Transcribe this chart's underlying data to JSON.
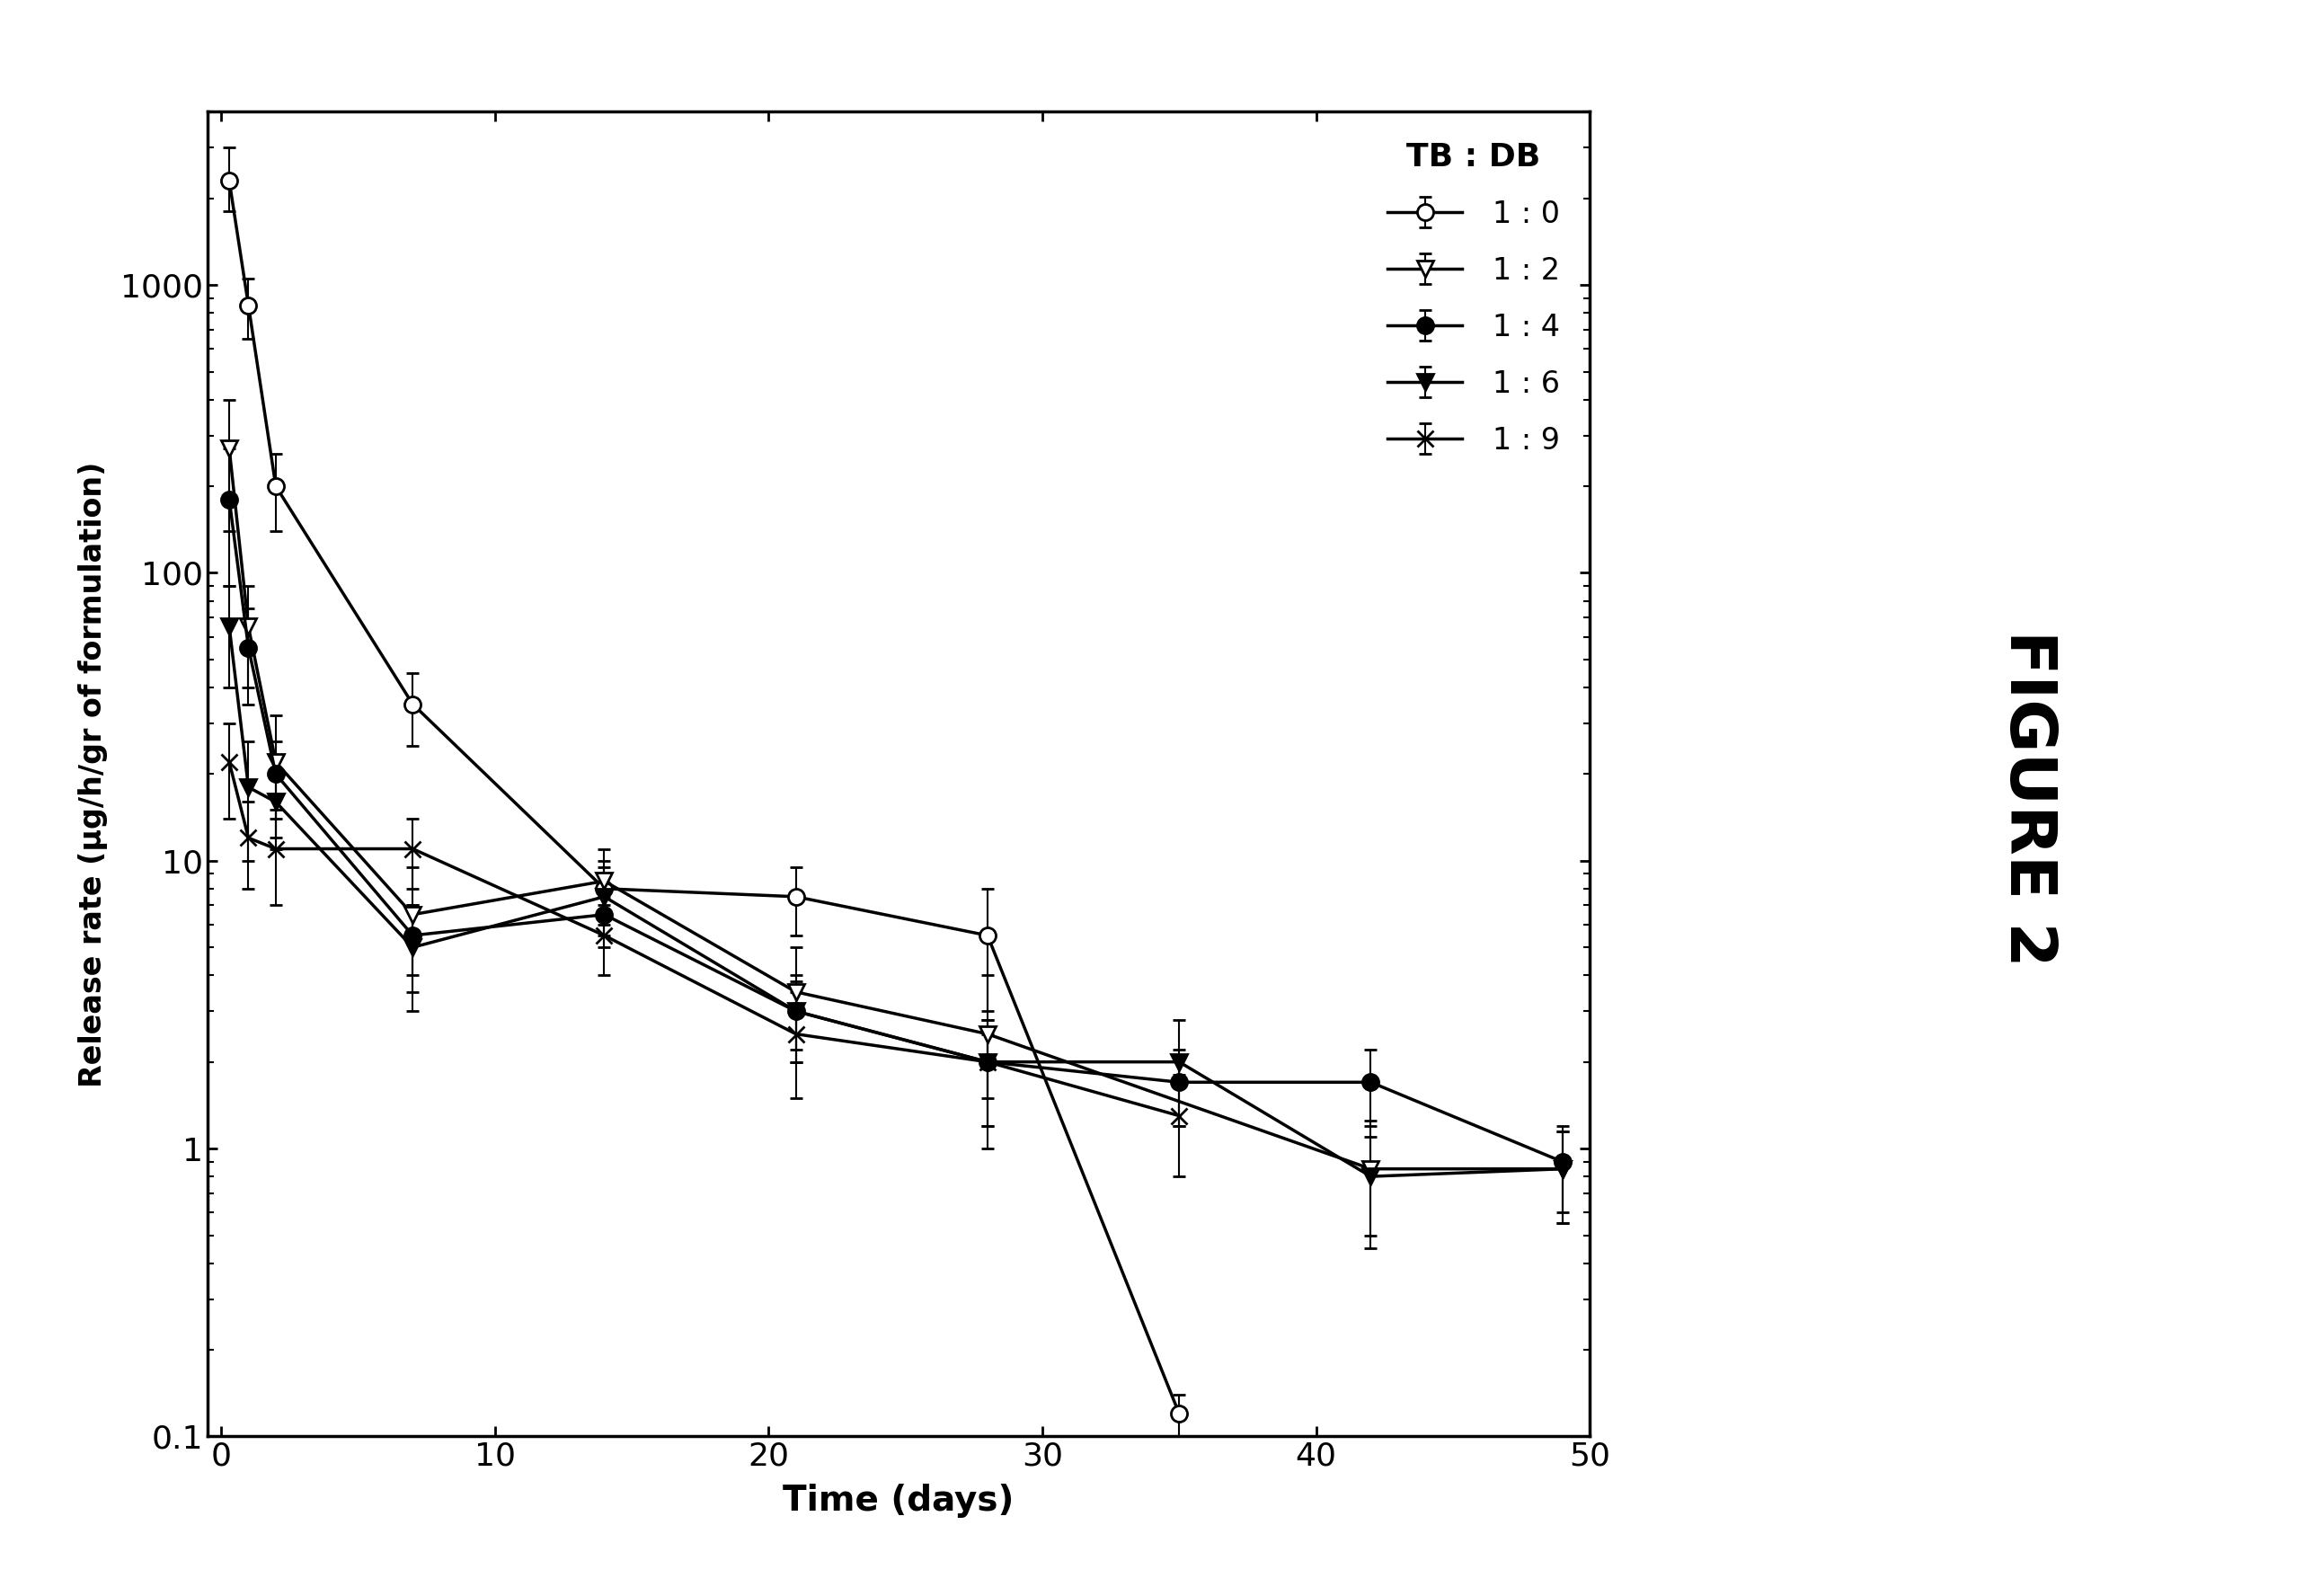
{
  "xlabel": "Time (days)",
  "ylabel": "Release rate (μg/h/gr of formulation)",
  "figure2_label": "FIGURE 2",
  "xlim": [
    -0.5,
    50
  ],
  "ylim": [
    0.1,
    4000
  ],
  "xticks": [
    0,
    10,
    20,
    30,
    40,
    50
  ],
  "legend_title": "TB : DB",
  "background_color": "#ffffff",
  "series": [
    {
      "label": "1 : 0",
      "marker": "o",
      "filled": false,
      "linewidth": 2.5,
      "markersize": 13,
      "x": [
        0.3,
        1.0,
        2.0,
        7.0,
        14.0,
        21.0,
        28.0,
        35.0
      ],
      "y": [
        2300,
        850,
        200,
        35,
        8.0,
        7.5,
        5.5,
        0.12
      ],
      "yerr_low": [
        500,
        200,
        60,
        10,
        1.5,
        2.0,
        2.5,
        0.02
      ],
      "yerr_high": [
        700,
        200,
        60,
        10,
        1.5,
        2.0,
        2.5,
        0.02
      ]
    },
    {
      "label": "1 : 2",
      "marker": "v",
      "filled": false,
      "linewidth": 2.5,
      "markersize": 13,
      "x": [
        0.3,
        1.0,
        2.0,
        7.0,
        14.0,
        21.0,
        28.0,
        42.0,
        49.0
      ],
      "y": [
        270,
        65,
        22,
        6.5,
        8.5,
        3.5,
        2.5,
        0.85,
        0.85
      ],
      "yerr_low": [
        130,
        25,
        10,
        3.0,
        2.5,
        1.5,
        1.5,
        0.4,
        0.3
      ],
      "yerr_high": [
        130,
        25,
        10,
        3.0,
        2.5,
        1.5,
        1.5,
        0.4,
        0.3
      ]
    },
    {
      "label": "1 : 4",
      "marker": "o",
      "filled": true,
      "linewidth": 2.5,
      "markersize": 13,
      "x": [
        0.3,
        1.0,
        2.0,
        7.0,
        14.0,
        21.0,
        28.0,
        35.0,
        42.0,
        49.0
      ],
      "y": [
        180,
        55,
        20,
        5.5,
        6.5,
        3.0,
        2.0,
        1.7,
        1.7,
        0.9
      ],
      "yerr_low": [
        90,
        20,
        6,
        1.5,
        1.0,
        0.8,
        0.5,
        0.5,
        0.5,
        0.3
      ],
      "yerr_high": [
        90,
        20,
        6,
        1.5,
        1.0,
        0.8,
        0.5,
        0.5,
        0.5,
        0.3
      ]
    },
    {
      "label": "1 : 6",
      "marker": "v",
      "filled": true,
      "linewidth": 2.5,
      "markersize": 13,
      "x": [
        0.3,
        1.0,
        2.0,
        7.0,
        14.0,
        21.0,
        28.0,
        35.0,
        42.0,
        49.0
      ],
      "y": [
        65,
        18,
        16,
        5.0,
        7.5,
        3.0,
        2.0,
        2.0,
        0.8,
        0.85
      ],
      "yerr_low": [
        25,
        8,
        5,
        2.0,
        2.5,
        1.0,
        0.8,
        0.8,
        0.3,
        0.3
      ],
      "yerr_high": [
        25,
        8,
        5,
        2.0,
        2.5,
        1.0,
        0.8,
        0.8,
        0.3,
        0.3
      ]
    },
    {
      "label": "1 : 9",
      "marker": "x",
      "filled": true,
      "linewidth": 2.5,
      "markersize": 13,
      "x": [
        0.3,
        1.0,
        2.0,
        7.0,
        14.0,
        21.0,
        28.0,
        35.0
      ],
      "y": [
        22,
        12,
        11,
        11,
        5.5,
        2.5,
        2.0,
        1.3
      ],
      "yerr_low": [
        8,
        4,
        4,
        3.0,
        1.5,
        1.0,
        0.8,
        0.5
      ],
      "yerr_high": [
        8,
        4,
        4,
        3.0,
        1.5,
        1.0,
        0.8,
        0.5
      ]
    }
  ]
}
